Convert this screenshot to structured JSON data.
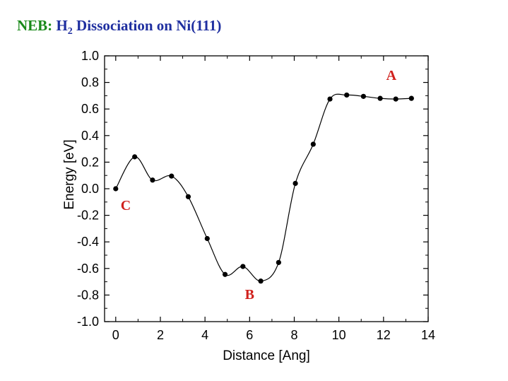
{
  "title_parts": {
    "neb": "NEB: ",
    "h": "H",
    "sub": "2",
    "rest": " Dissociation on Ni(111)"
  },
  "colors": {
    "title_neb": "#1a8a1a",
    "title_rest": "#1f2fa0",
    "annotation": "#d0201c",
    "line": "#000000"
  },
  "chart_data": {
    "type": "line",
    "xlabel": "Distance  [Ang]",
    "ylabel": "Energy  [eV]",
    "xlim": [
      -0.5,
      14
    ],
    "ylim": [
      -1.0,
      1.0
    ],
    "xticks": [
      0,
      2,
      4,
      6,
      8,
      10,
      12,
      14
    ],
    "yticks": [
      1.0,
      0.8,
      0.6,
      0.4,
      0.2,
      0.0,
      -0.2,
      -0.4,
      -0.6,
      -0.8,
      -1.0
    ],
    "ytick_labels": [
      "1.0",
      "0.8",
      "0.6",
      "0.4",
      "0.2",
      "0.0",
      "-0.2",
      "-0.4",
      "-0.6",
      "-0.8",
      "-1.0"
    ],
    "grid": false,
    "series": [
      {
        "x": [
          0.0,
          0.85,
          1.65,
          2.5,
          3.25,
          4.1,
          4.9,
          5.7,
          6.5,
          7.3,
          8.05,
          8.85,
          9.6,
          10.35,
          11.1,
          11.85,
          12.55,
          13.25
        ],
        "y": [
          0.0,
          0.24,
          0.065,
          0.095,
          -0.06,
          -0.375,
          -0.645,
          -0.585,
          -0.695,
          -0.555,
          0.04,
          0.335,
          0.675,
          0.705,
          0.695,
          0.68,
          0.675,
          0.68
        ]
      }
    ],
    "annotations": [
      {
        "text": "A",
        "x": 12.35,
        "y": 0.82
      },
      {
        "text": "B",
        "x": 6.0,
        "y": -0.83
      },
      {
        "text": "C",
        "x": 0.45,
        "y": -0.16
      }
    ]
  }
}
